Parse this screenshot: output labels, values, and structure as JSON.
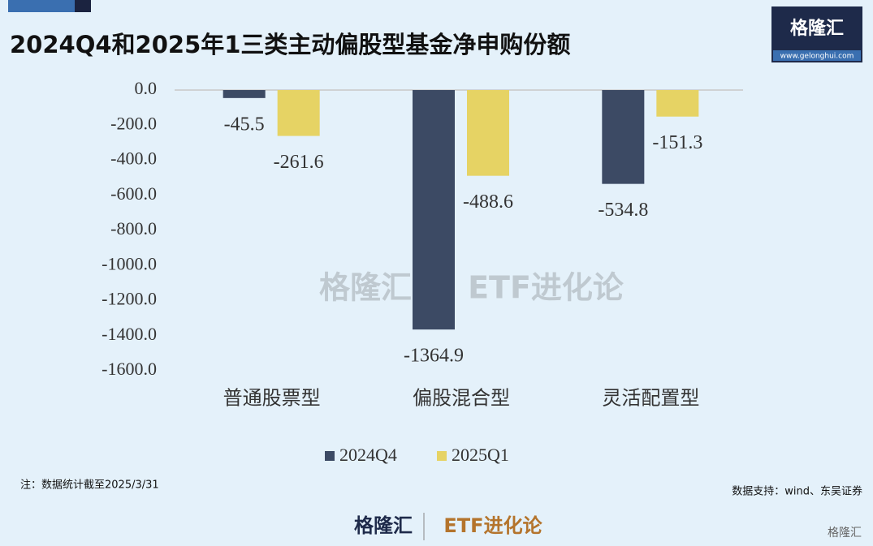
{
  "chart_data": {
    "type": "bar",
    "title": "2024Q4和2025年1三类主动偏股型基金净申购份额",
    "categories": [
      "普通股票型",
      "偏股混合型",
      "灵活配置型"
    ],
    "series": [
      {
        "name": "2024Q4",
        "color": "#3c4a64",
        "values": [
          -45.5,
          -1364.9,
          -534.8
        ]
      },
      {
        "name": "2025Q1",
        "color": "#e6d364",
        "values": [
          -261.6,
          -488.6,
          -151.3
        ]
      }
    ],
    "ylim": [
      0,
      -1600
    ],
    "yticks": [
      {
        "value": 0,
        "label": "0.0"
      },
      {
        "value": -200,
        "label": "-200.0"
      },
      {
        "value": -400,
        "label": "-400.0"
      },
      {
        "value": -600,
        "label": "-600.0"
      },
      {
        "value": -800,
        "label": "-800.0"
      },
      {
        "value": -1000,
        "label": "-1000.0"
      },
      {
        "value": -1200,
        "label": "-1200.0"
      },
      {
        "value": -1400,
        "label": "-1400.0"
      },
      {
        "value": -1600,
        "label": "-1600.0"
      }
    ],
    "grid": false,
    "legend": "bottom",
    "note": "注：数据统计截至2025/3/31",
    "source": "数据支持：wind、东吴证券"
  },
  "branding": {
    "logo": "格隆汇",
    "url": "www.gelonghui.com",
    "column": "ETF进化论"
  }
}
